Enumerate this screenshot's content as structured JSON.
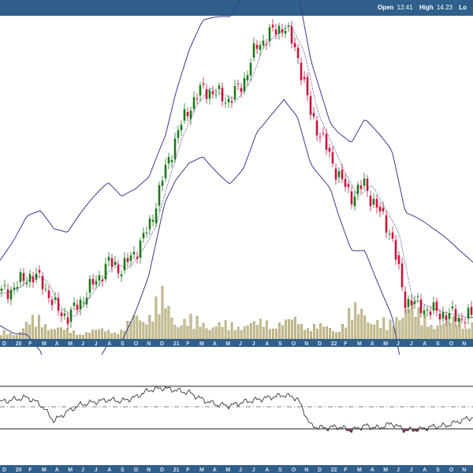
{
  "quote": {
    "open_label": "Open",
    "open_value": "12.41",
    "high_label": "High",
    "high_value": "14.23",
    "low_label": "Lo"
  },
  "colors": {
    "header_bar": "#2f5f8a",
    "up_candle": "#1a7a1a",
    "down_candle": "#c8143c",
    "volume": "#c8c08c",
    "band": "#3a3a8c",
    "oscillator_pos": "#a89a50",
    "oscillator_neg": "#8a3a6a"
  },
  "chart_data": [
    {
      "type": "candlestick",
      "title": "",
      "overlays": [
        "bollinger-upper",
        "bollinger-middle",
        "bollinger-lower"
      ],
      "grid": false,
      "time_axis": [
        "D",
        "20",
        "F",
        "M",
        "A",
        "M",
        "J",
        "J",
        "A",
        "S",
        "O",
        "N",
        "D",
        "21",
        "F",
        "M",
        "A",
        "M",
        "J",
        "J",
        "A",
        "S",
        "O",
        "N",
        "D",
        "22",
        "F",
        "M",
        "A",
        "M",
        "J",
        "J",
        "A",
        "S",
        "O",
        "N"
      ],
      "price_index": [
        0.1,
        0.12,
        0.16,
        0.14,
        0.05,
        0.02,
        0.08,
        0.14,
        0.2,
        0.18,
        0.24,
        0.32,
        0.48,
        0.62,
        0.72,
        0.78,
        0.76,
        0.74,
        0.8,
        0.92,
        0.96,
        0.99,
        0.9,
        0.7,
        0.6,
        0.5,
        0.42,
        0.46,
        0.38,
        0.3,
        0.08,
        0.06,
        0.04,
        0.03,
        0.02,
        0.02
      ],
      "volume_index": [
        0.1,
        0.08,
        0.25,
        0.3,
        0.18,
        0.12,
        0.1,
        0.12,
        0.15,
        0.12,
        0.35,
        0.4,
        0.6,
        0.3,
        0.28,
        0.25,
        0.22,
        0.2,
        0.25,
        0.22,
        0.28,
        0.24,
        0.3,
        0.2,
        0.18,
        0.15,
        0.4,
        0.45,
        0.25,
        0.22,
        0.6,
        0.35,
        0.28,
        0.22,
        0.3,
        0.25
      ]
    },
    {
      "type": "line",
      "title": "",
      "description_levels": [
        "upper",
        "middle",
        "lower"
      ],
      "oscillator": [
        0.1,
        0.15,
        0.2,
        0.05,
        -0.3,
        -0.1,
        0.05,
        0.1,
        0.15,
        0.12,
        0.2,
        0.35,
        0.4,
        0.35,
        0.3,
        0.15,
        0.05,
        0.02,
        0.1,
        0.15,
        0.2,
        0.25,
        0.18,
        -0.4,
        -0.45,
        -0.42,
        -0.5,
        -0.4,
        -0.45,
        -0.35,
        -0.5,
        -0.48,
        -0.42,
        -0.4,
        -0.3,
        -0.22
      ]
    }
  ]
}
